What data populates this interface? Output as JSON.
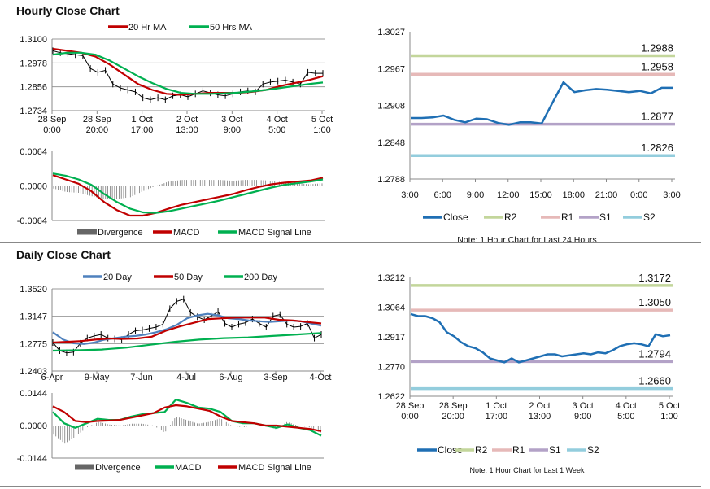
{
  "sections": {
    "hourly_title": "Hourly Close Chart",
    "daily_title": "Daily Close Chart"
  },
  "colors": {
    "close": "#1f6fb4",
    "r2": "#c3d69b",
    "r1": "#e6b9b8",
    "s1": "#b3a2c7",
    "s2": "#93cddd",
    "red": "#c00000",
    "green": "#00b050",
    "blue": "#4f81bd",
    "bars": "#000000",
    "div": "#666666"
  },
  "chart_data": [
    {
      "id": "hourly-price",
      "type": "line",
      "title": "Hourly Close Chart",
      "ylim": [
        1.2734,
        1.31
      ],
      "yticks": [
        "1.3100",
        "1.2978",
        "1.2856",
        "1.2734"
      ],
      "xticks": [
        [
          "28 Sep",
          "0:00"
        ],
        [
          "28 Sep",
          "20:00"
        ],
        [
          "1 Oct",
          "17:00"
        ],
        [
          "2 Oct",
          "13:00"
        ],
        [
          "3 Oct",
          "9:00"
        ],
        [
          "4 Oct",
          "5:00"
        ],
        [
          "5 Oct",
          "1:00"
        ]
      ],
      "legend": [
        "20 Hr MA",
        "50 Hrs MA"
      ],
      "series": [
        {
          "name": "Close",
          "color": "bars",
          "values": [
            1.304,
            1.303,
            1.3025,
            1.302,
            1.3015,
            1.295,
            1.293,
            1.294,
            1.287,
            1.285,
            1.284,
            1.283,
            1.28,
            1.279,
            1.28,
            1.279,
            1.281,
            1.2815,
            1.2805,
            1.282,
            1.2835,
            1.2825,
            1.2815,
            1.281,
            1.282,
            1.283,
            1.2835,
            1.283,
            1.287,
            1.288,
            1.2885,
            1.289,
            1.288,
            1.287,
            1.293,
            1.2925,
            1.2925
          ]
        },
        {
          "name": "20 Hr MA",
          "color": "red",
          "values": [
            1.305,
            1.304,
            1.303,
            1.301,
            1.297,
            1.292,
            1.287,
            1.284,
            1.282,
            1.2815,
            1.282,
            1.2825,
            1.2825,
            1.2825,
            1.283,
            1.284,
            1.286,
            1.2875,
            1.289,
            1.291
          ]
        },
        {
          "name": "50 Hrs MA",
          "color": "green",
          "values": [
            1.302,
            1.303,
            1.303,
            1.302,
            1.299,
            1.295,
            1.291,
            1.2875,
            1.2845,
            1.2825,
            1.282,
            1.282,
            1.2822,
            1.2826,
            1.2832,
            1.284,
            1.285,
            1.286,
            1.287,
            1.2878
          ]
        }
      ]
    },
    {
      "id": "hourly-macd",
      "type": "line",
      "ylim": [
        -0.0064,
        0.0064
      ],
      "yticks": [
        "0.0064",
        "0.0000",
        "-0.0064"
      ],
      "legend": [
        "Divergence",
        "MACD",
        "MACD Signal Line"
      ],
      "series": [
        {
          "name": "MACD",
          "color": "red",
          "values": [
            0.002,
            0.0012,
            0.0004,
            -0.001,
            -0.003,
            -0.0045,
            -0.0055,
            -0.0055,
            -0.005,
            -0.0042,
            -0.0035,
            -0.003,
            -0.0025,
            -0.002,
            -0.0015,
            -0.0008,
            -0.0002,
            0.0003,
            0.0006,
            0.0008,
            0.001,
            0.0015
          ]
        },
        {
          "name": "MACD Signal Line",
          "color": "green",
          "values": [
            0.0023,
            0.0019,
            0.0012,
            0.0002,
            -0.0015,
            -0.003,
            -0.0042,
            -0.0049,
            -0.005,
            -0.0047,
            -0.0042,
            -0.0037,
            -0.0032,
            -0.0027,
            -0.0021,
            -0.0015,
            -0.0009,
            -0.0003,
            0.0002,
            0.0005,
            0.0008,
            0.0012
          ]
        }
      ]
    },
    {
      "id": "pivot-24h",
      "type": "line",
      "ylim": [
        1.2788,
        1.3027
      ],
      "yticks": [
        "1.3027",
        "1.2967",
        "1.2908",
        "1.2848",
        "1.2788"
      ],
      "xticks": [
        [
          "3:00"
        ],
        [
          "6:00"
        ],
        [
          "9:00"
        ],
        [
          "12:00"
        ],
        [
          "15:00"
        ],
        [
          "18:00"
        ],
        [
          "21:00"
        ],
        [
          "0:00"
        ],
        [
          "3:00"
        ]
      ],
      "legend": [
        "Close",
        "R2",
        "R1",
        "S1",
        "S2"
      ],
      "note": "Note: 1 Hour Chart for Last 24 Hours",
      "levels": [
        {
          "name": "R2",
          "value": 1.2988,
          "label": "1.2988"
        },
        {
          "name": "R1",
          "value": 1.2958,
          "label": "1.2958"
        },
        {
          "name": "S1",
          "value": 1.2877,
          "label": "1.2877"
        },
        {
          "name": "S2",
          "value": 1.2826,
          "label": "1.2826"
        }
      ],
      "series": [
        {
          "name": "Close",
          "color": "close",
          "values": [
            1.2887,
            1.2887,
            1.2888,
            1.2891,
            1.2884,
            1.288,
            1.2886,
            1.2885,
            1.2879,
            1.2876,
            1.288,
            1.288,
            1.2878,
            1.2912,
            1.2945,
            1.2929,
            1.2932,
            1.2934,
            1.2933,
            1.2931,
            1.2929,
            1.2931,
            1.2927,
            1.2936,
            1.2936
          ]
        }
      ]
    },
    {
      "id": "daily-price",
      "type": "line",
      "title": "Daily Close Chart",
      "ylim": [
        1.2403,
        1.352
      ],
      "yticks": [
        "1.3520",
        "1.3147",
        "1.2775",
        "1.2403"
      ],
      "xticks": [
        [
          "6-Apr"
        ],
        [
          "9-May"
        ],
        [
          "7-Jun"
        ],
        [
          "4-Jul"
        ],
        [
          "6-Aug"
        ],
        [
          "3-Sep"
        ],
        [
          "4-Oct"
        ]
      ],
      "legend": [
        "20 Day",
        "50 Day",
        "200 Day"
      ],
      "series": [
        {
          "name": "Close",
          "color": "bars",
          "values": [
            1.279,
            1.268,
            1.265,
            1.266,
            1.278,
            1.285,
            1.288,
            1.29,
            1.285,
            1.284,
            1.283,
            1.29,
            1.295,
            1.296,
            1.298,
            1.3,
            1.304,
            1.325,
            1.335,
            1.338,
            1.32,
            1.314,
            1.31,
            1.315,
            1.321,
            1.305,
            1.3,
            1.304,
            1.306,
            1.311,
            1.305,
            1.3,
            1.315,
            1.317,
            1.304,
            1.3,
            1.301,
            1.305,
            1.285,
            1.29
          ]
        },
        {
          "name": "20 Day",
          "color": "blue",
          "values": [
            1.293,
            1.283,
            1.278,
            1.277,
            1.279,
            1.283,
            1.285,
            1.287,
            1.288,
            1.29,
            1.293,
            1.297,
            1.303,
            1.312,
            1.316,
            1.318,
            1.316,
            1.312,
            1.311,
            1.309,
            1.308,
            1.307,
            1.308,
            1.309,
            1.308,
            1.305,
            1.302
          ]
        },
        {
          "name": "50 Day",
          "color": "red",
          "values": [
            1.279,
            1.28,
            1.281,
            1.283,
            1.2845,
            1.284,
            1.2845,
            1.287,
            1.295,
            1.301,
            1.306,
            1.311,
            1.312,
            1.313,
            1.313,
            1.313,
            1.31,
            1.309,
            1.307,
            1.305
          ]
        },
        {
          "name": "200 Day",
          "color": "green",
          "values": [
            1.268,
            1.2685,
            1.2695,
            1.272,
            1.276,
            1.28,
            1.283,
            1.285,
            1.286,
            1.288,
            1.29,
            1.292
          ]
        }
      ]
    },
    {
      "id": "daily-macd",
      "type": "line",
      "ylim": [
        -0.0144,
        0.0144
      ],
      "yticks": [
        "0.0144",
        "0.0000",
        "-0.0144"
      ],
      "legend": [
        "Divergence",
        "MACD",
        "MACD Signal Line"
      ],
      "series": [
        {
          "name": "MACD",
          "color": "green",
          "values": [
            0.006,
            0.001,
            -0.001,
            0.001,
            0.003,
            0.0025,
            0.0025,
            0.004,
            0.005,
            0.0055,
            0.006,
            0.0115,
            0.01,
            0.008,
            0.0075,
            0.006,
            0.002,
            0.001,
            0.001,
            0.0,
            -0.001,
            0.0005,
            -0.001,
            -0.002,
            -0.0045
          ]
        },
        {
          "name": "MACD Signal Line",
          "color": "red",
          "values": [
            0.0085,
            0.006,
            0.002,
            0.0015,
            0.002,
            0.0022,
            0.0025,
            0.0035,
            0.0045,
            0.0055,
            0.008,
            0.009,
            0.0085,
            0.0075,
            0.0065,
            0.004,
            0.002,
            0.0015,
            0.001,
            0.0,
            0.0,
            -0.0005,
            -0.001,
            -0.0015,
            -0.0025
          ]
        }
      ]
    },
    {
      "id": "pivot-week",
      "type": "line",
      "ylim": [
        1.2622,
        1.3212
      ],
      "yticks": [
        "1.3212",
        "1.3064",
        "1.2917",
        "1.2770",
        "1.2622"
      ],
      "xticks": [
        [
          "28 Sep",
          "0:00"
        ],
        [
          "28 Sep",
          "20:00"
        ],
        [
          "1 Oct",
          "17:00"
        ],
        [
          "2 Oct",
          "13:00"
        ],
        [
          "3 Oct",
          "9:00"
        ],
        [
          "4 Oct",
          "5:00"
        ],
        [
          "5 Oct",
          "1:00"
        ]
      ],
      "legend": [
        "Close",
        "R2",
        "R1",
        "S1",
        "S2"
      ],
      "note": "Note: 1 Hour Chart for  Last 1 Week",
      "levels": [
        {
          "name": "R2",
          "value": 1.3172,
          "label": "1.3172"
        },
        {
          "name": "R1",
          "value": 1.305,
          "label": "1.3050"
        },
        {
          "name": "S1",
          "value": 1.2794,
          "label": "1.2794"
        },
        {
          "name": "S2",
          "value": 1.266,
          "label": "1.2660"
        }
      ],
      "series": [
        {
          "name": "Close",
          "color": "close",
          "values": [
            1.303,
            1.302,
            1.302,
            1.301,
            1.299,
            1.294,
            1.292,
            1.289,
            1.287,
            1.286,
            1.284,
            1.281,
            1.28,
            1.279,
            1.281,
            1.279,
            1.28,
            1.281,
            1.282,
            1.283,
            1.283,
            1.282,
            1.2825,
            1.283,
            1.2835,
            1.283,
            1.284,
            1.2835,
            1.285,
            1.287,
            1.288,
            1.2885,
            1.288,
            1.287,
            1.293,
            1.292,
            1.2925
          ]
        }
      ]
    }
  ]
}
